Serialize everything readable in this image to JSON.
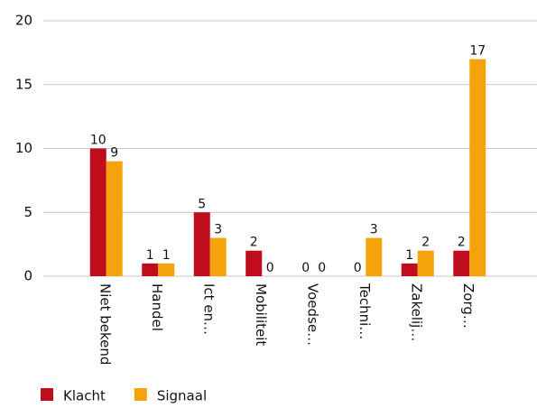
{
  "chart_data": {
    "type": "bar",
    "categories": [
      "Niet bekend",
      "Handel",
      "Ict en…",
      "Mobiliteit",
      "Voedse…",
      "Techni…",
      "Zakelij…",
      "Zorg…"
    ],
    "series": [
      {
        "name": "Klacht",
        "color": "#c00d1e",
        "values": [
          10,
          1,
          5,
          2,
          0,
          0,
          1,
          2
        ]
      },
      {
        "name": "Signaal",
        "color": "#f5a30c",
        "values": [
          9,
          1,
          3,
          0,
          0,
          3,
          2,
          17
        ]
      }
    ],
    "ylim": [
      0,
      20
    ],
    "yticks": [
      0,
      5,
      10,
      15,
      20
    ],
    "grid": true,
    "legend": "bottom"
  }
}
